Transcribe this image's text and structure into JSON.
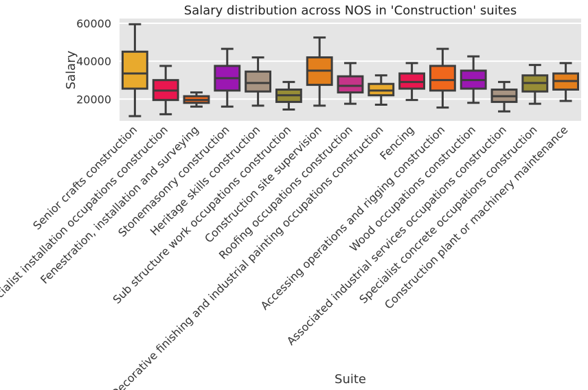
{
  "chart_data": {
    "type": "box",
    "title": "Salary distribution across NOS in 'Construction' suites",
    "xlabel": "Suite",
    "ylabel": "Salary",
    "ylim": [
      8500,
      62500
    ],
    "yticks": [
      20000,
      40000,
      60000
    ],
    "grid": true,
    "legend": "none",
    "boxes": [
      {
        "category": "Senior crafts construction",
        "color": "#e8aa2d",
        "whisker_low": 11000,
        "q1": 25500,
        "median": 33500,
        "q3": 45000,
        "whisker_high": 59500
      },
      {
        "category": "Specialist installation occupations construction",
        "color": "#e8174f",
        "whisker_low": 12000,
        "q1": 19500,
        "median": 24500,
        "q3": 30000,
        "whisker_high": 37500
      },
      {
        "category": "Fenestration, installation and surveying",
        "color": "#f0671c",
        "whisker_low": 16000,
        "q1": 18000,
        "median": 19500,
        "q3": 21500,
        "whisker_high": 23500
      },
      {
        "category": "Stonemasonry construction",
        "color": "#9b17b2",
        "whisker_low": 16000,
        "q1": 24500,
        "median": 31000,
        "q3": 37500,
        "whisker_high": 46500
      },
      {
        "category": "Heritage skills construction",
        "color": "#a89482",
        "whisker_low": 16500,
        "q1": 24000,
        "median": 28500,
        "q3": 34500,
        "whisker_high": 42000
      },
      {
        "category": "Sub structure work occupations construction",
        "color": "#978d36",
        "whisker_low": 14500,
        "q1": 18500,
        "median": 22000,
        "q3": 25000,
        "whisker_high": 29000
      },
      {
        "category": "Construction site supervision",
        "color": "#e37f1c",
        "whisker_low": 16500,
        "q1": 27500,
        "median": 35000,
        "q3": 42000,
        "whisker_high": 52500
      },
      {
        "category": "Roofing occupations construction",
        "color": "#c53488",
        "whisker_low": 17500,
        "q1": 23500,
        "median": 27000,
        "q3": 32000,
        "whisker_high": 39000
      },
      {
        "category": "Decorative finishing and industrial painting occupations construction",
        "color": "#e8aa2d",
        "whisker_low": 17000,
        "q1": 22000,
        "median": 24500,
        "q3": 28000,
        "whisker_high": 32500
      },
      {
        "category": "Fencing",
        "color": "#e8174f",
        "whisker_low": 19500,
        "q1": 25500,
        "median": 29000,
        "q3": 33500,
        "whisker_high": 39000
      },
      {
        "category": "Accessing operations and rigging construction",
        "color": "#f0671c",
        "whisker_low": 15500,
        "q1": 24500,
        "median": 30000,
        "q3": 37500,
        "whisker_high": 46500
      },
      {
        "category": "Wood occupations construction",
        "color": "#9b17b2",
        "whisker_low": 18000,
        "q1": 25500,
        "median": 30000,
        "q3": 35000,
        "whisker_high": 42500
      },
      {
        "category": "Associated industrial services occupations construction",
        "color": "#a89482",
        "whisker_low": 13500,
        "q1": 18500,
        "median": 21500,
        "q3": 25000,
        "whisker_high": 29000
      },
      {
        "category": "Specialist concrete occupations construction",
        "color": "#978d36",
        "whisker_low": 17500,
        "q1": 24000,
        "median": 28500,
        "q3": 32500,
        "whisker_high": 38000
      },
      {
        "category": "Construction plant or machinery maintenance",
        "color": "#e37f1c",
        "whisker_low": 19000,
        "q1": 25000,
        "median": 29500,
        "q3": 33500,
        "whisker_high": 39000
      }
    ]
  }
}
